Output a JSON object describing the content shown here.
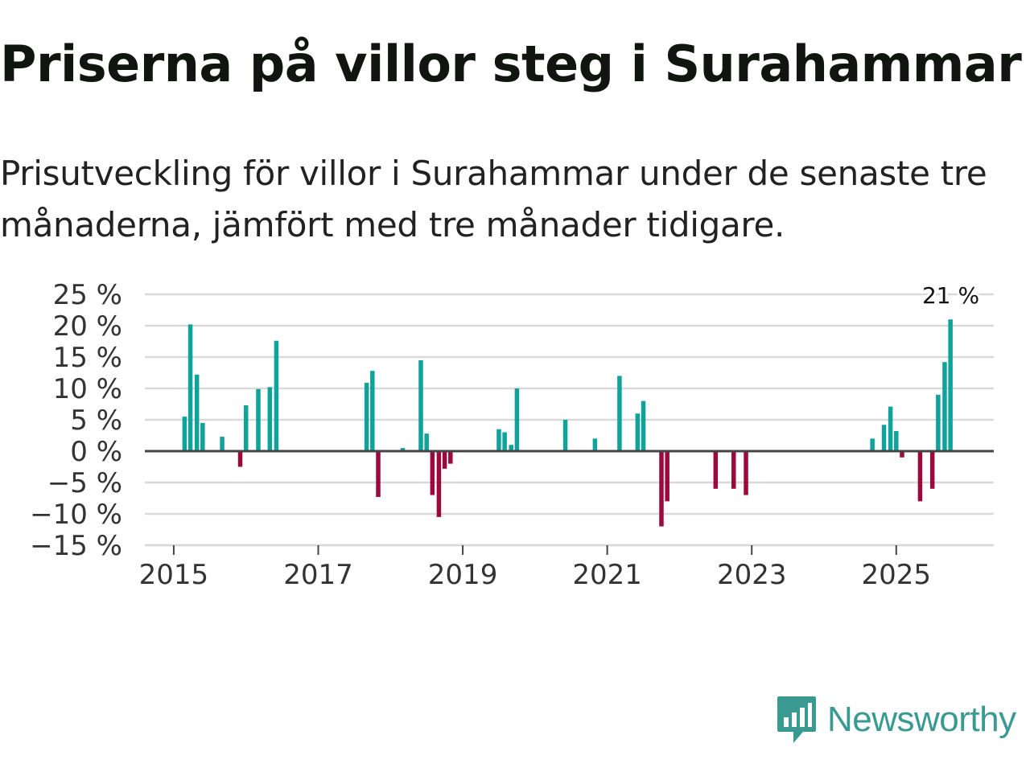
{
  "title": "Priserna på villor steg i Surahammar",
  "subtitle": "Prisutveckling för villor i Surahammar under de senaste tre månaderna, jämfört med tre månader tidigare.",
  "brand": {
    "name": "Newsworthy",
    "color": "#3a9a92",
    "icon": "newsworthy-logo-icon"
  },
  "colors": {
    "positive": "#0fa39b",
    "negative": "#9b0a3d",
    "grid": "#d9d9d9",
    "zero": "#444444"
  },
  "chart_data": {
    "type": "bar",
    "title": "Priserna på villor steg i Surahammar",
    "xlabel": "",
    "ylabel": "",
    "ylim": [
      -15,
      25
    ],
    "xlim": [
      2014.6,
      2026.35
    ],
    "yticks": [
      25,
      20,
      15,
      10,
      5,
      0,
      -5,
      -10,
      -15
    ],
    "ytick_labels": [
      "25 %",
      "20 %",
      "15 %",
      "10 %",
      "5 %",
      "0 %",
      "−5 %",
      "−10 %",
      "−15 %"
    ],
    "xticks": [
      2015,
      2017,
      2019,
      2021,
      2023,
      2025
    ],
    "xtick_labels": [
      "2015",
      "2017",
      "2019",
      "2021",
      "2023",
      "2025"
    ],
    "annotation": {
      "x": 2025.75,
      "y": 21,
      "text": "21 %"
    },
    "series": [
      {
        "name": "Prisutveckling",
        "x": [
          2015.15,
          2015.23,
          2015.32,
          2015.4,
          2015.67,
          2015.92,
          2016.0,
          2016.17,
          2016.33,
          2016.42,
          2017.67,
          2017.75,
          2017.83,
          2018.17,
          2018.42,
          2018.5,
          2018.58,
          2018.67,
          2018.75,
          2018.83,
          2019.5,
          2019.58,
          2019.67,
          2019.75,
          2020.42,
          2020.83,
          2021.17,
          2021.42,
          2021.5,
          2021.75,
          2021.83,
          2022.5,
          2022.75,
          2022.92,
          2024.67,
          2024.83,
          2024.92,
          2025.0,
          2025.08,
          2025.33,
          2025.5,
          2025.58,
          2025.67,
          2025.75
        ],
        "values": [
          5.5,
          20.2,
          12.2,
          4.5,
          2.3,
          -2.5,
          7.3,
          9.9,
          10.2,
          17.6,
          10.9,
          12.8,
          -7.3,
          0.5,
          14.5,
          2.8,
          -7,
          -10.5,
          -2.8,
          -2,
          3.5,
          3,
          1,
          10,
          5,
          2,
          12,
          6,
          8,
          -12,
          -8,
          -6,
          -6,
          -7,
          2,
          4.2,
          7.1,
          3.2,
          -1,
          -8,
          -6,
          9,
          14.2,
          21
        ]
      }
    ]
  }
}
